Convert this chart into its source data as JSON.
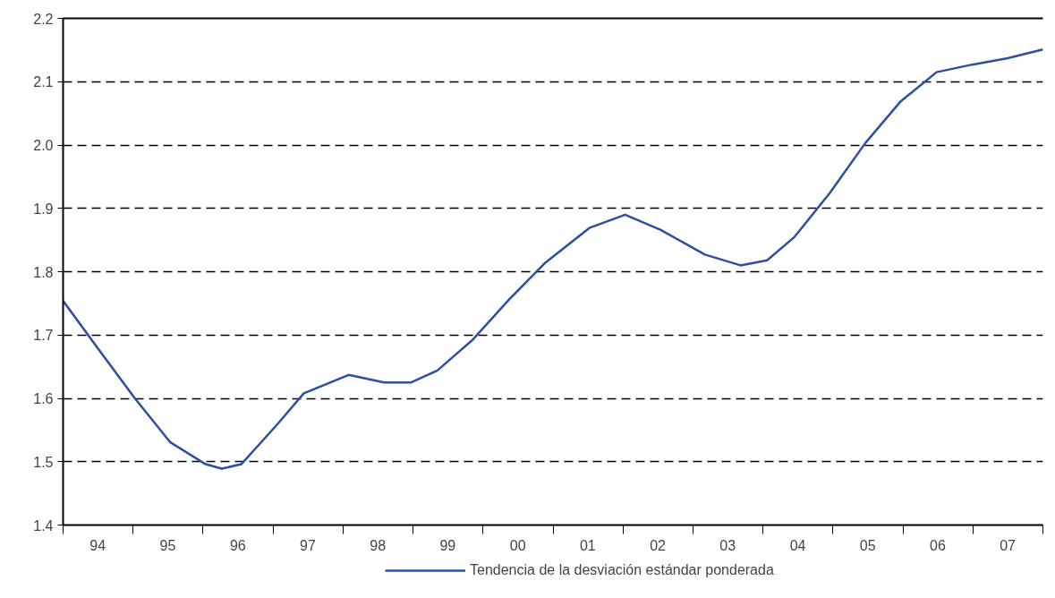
{
  "chart_data": {
    "type": "line",
    "x": [
      "1994-01-01",
      "1994-07-01",
      "1995-01-08",
      "1995-07-13",
      "1996-01-15",
      "1996-04-08",
      "1996-07-19",
      "1997-01-23",
      "1997-06-10",
      "1998-01-30",
      "1998-08-04",
      "1998-12-20",
      "1999-05-08",
      "1999-11-10",
      "2000-05-16",
      "2000-11-17",
      "2001-07-09",
      "2002-01-12",
      "2002-07-17",
      "2003-03-04",
      "2003-09-06",
      "2004-01-23",
      "2004-06-14",
      "2004-12-17",
      "2005-06-18",
      "2005-12-20",
      "2006-06-25",
      "2006-12-28",
      "2007-07-02",
      "2008-01-01"
    ],
    "series": [
      {
        "name": "Tendencia de la desviación estándar ponderada",
        "color": "#2e4f9f",
        "values": [
          1.754,
          1.679,
          1.601,
          1.531,
          1.496,
          1.489,
          1.496,
          1.559,
          1.608,
          1.637,
          1.625,
          1.625,
          1.644,
          1.693,
          1.756,
          1.813,
          1.869,
          1.89,
          1.866,
          1.827,
          1.81,
          1.818,
          1.855,
          1.925,
          2.003,
          2.069,
          2.115,
          2.127,
          2.137,
          2.151
        ]
      }
    ],
    "xlim": [
      "1994-01-01",
      "2008-01-01"
    ],
    "xticks": [
      {
        "value": "1994-01-01",
        "label": null
      },
      {
        "value": "1995-01-01",
        "label": null
      },
      {
        "value": "1996-01-01",
        "label": null
      },
      {
        "value": "1997-01-01",
        "label": null
      },
      {
        "value": "1998-01-01",
        "label": null
      },
      {
        "value": "1999-01-01",
        "label": null
      },
      {
        "value": "2000-01-01",
        "label": null
      },
      {
        "value": "2001-01-01",
        "label": null
      },
      {
        "value": "2002-01-01",
        "label": null
      },
      {
        "value": "2003-01-01",
        "label": null
      },
      {
        "value": "2004-01-01",
        "label": null
      },
      {
        "value": "2005-01-01",
        "label": null
      },
      {
        "value": "2006-01-01",
        "label": null
      },
      {
        "value": "2007-01-01",
        "label": null
      },
      {
        "value": "2008-01-01",
        "label": null
      },
      {
        "value": "1994-07-01",
        "label": "94"
      },
      {
        "value": "1995-07-01",
        "label": "95"
      },
      {
        "value": "1996-07-01",
        "label": "96"
      },
      {
        "value": "1997-07-01",
        "label": "97"
      },
      {
        "value": "1998-07-01",
        "label": "98"
      },
      {
        "value": "1999-07-01",
        "label": "99"
      },
      {
        "value": "2000-07-01",
        "label": "00"
      },
      {
        "value": "2001-07-01",
        "label": "01"
      },
      {
        "value": "2002-07-01",
        "label": "02"
      },
      {
        "value": "2003-07-01",
        "label": "03"
      },
      {
        "value": "2004-07-01",
        "label": "04"
      },
      {
        "value": "2005-07-01",
        "label": "05"
      },
      {
        "value": "2006-07-01",
        "label": "06"
      },
      {
        "value": "2007-07-01",
        "label": "07"
      }
    ],
    "ylim": [
      1.4,
      2.2
    ],
    "yticks": [
      1.4,
      1.5,
      1.6,
      1.7,
      1.8,
      1.9,
      {
        "value": 2.0,
        "label": "2.0"
      },
      2.1,
      2.2
    ],
    "grid": "y",
    "legend": "bottom",
    "marker": "none",
    "line_style": "solid"
  }
}
